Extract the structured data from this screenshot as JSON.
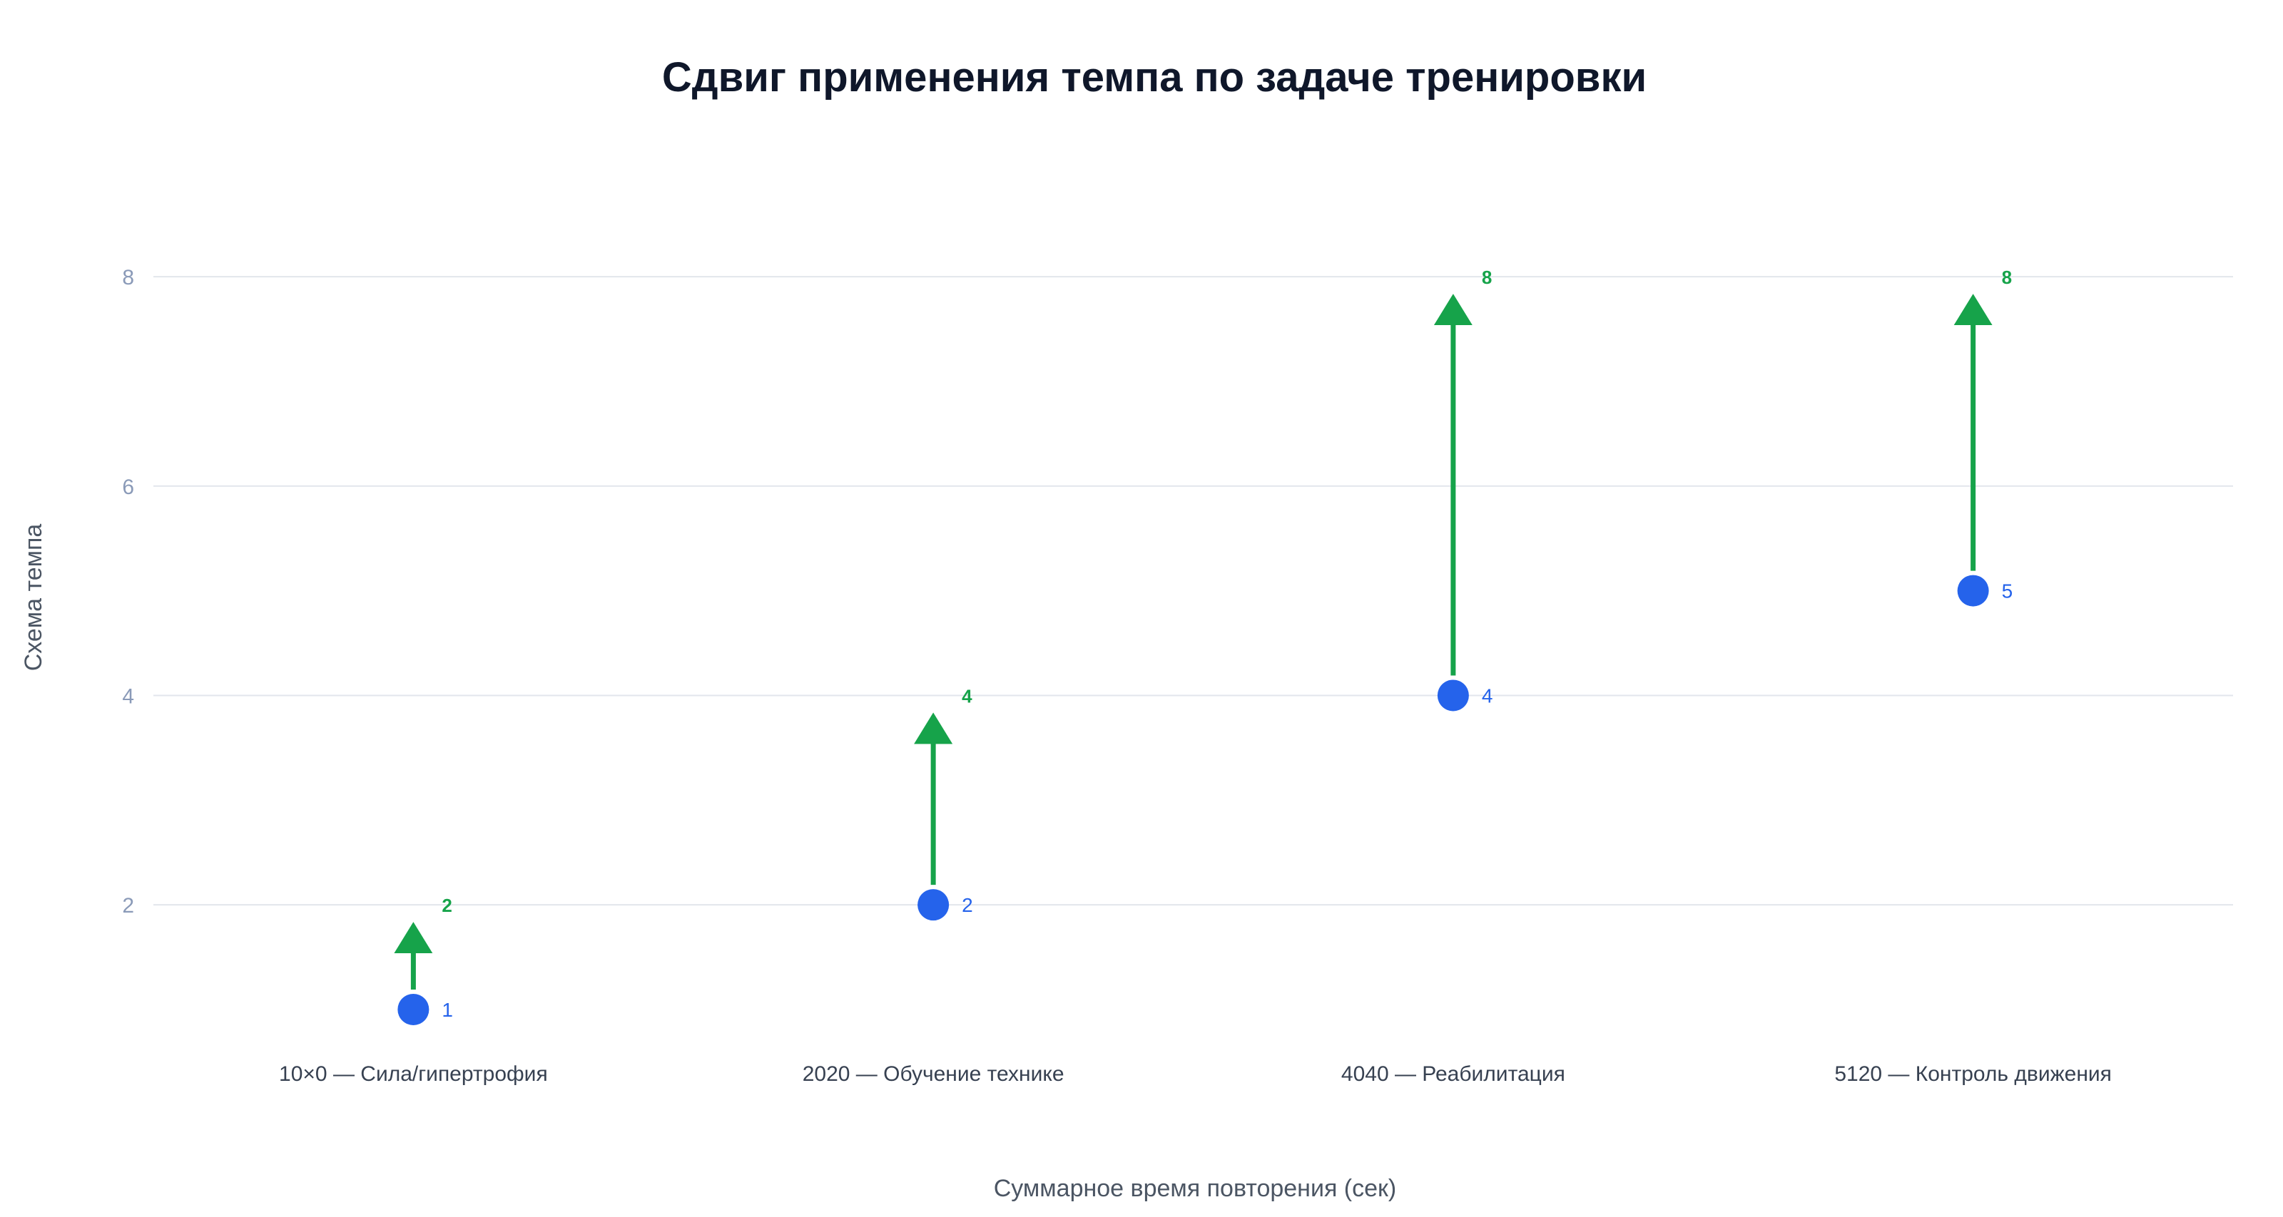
{
  "chart_data": {
    "type": "scatter",
    "title": "Сдвиг применения темпа по задаче тренировки",
    "xlabel": "Суммарное время повторения (сек)",
    "ylabel": "Схема темпа",
    "categories": [
      "10×0 — Сила/гипертрофия",
      "2020 — Обучение технике",
      "4040 — Реабилитация",
      "5120 — Контроль движения"
    ],
    "start_values": [
      1,
      2,
      4,
      5
    ],
    "end_values": [
      2,
      4,
      8,
      8
    ],
    "y_ticks": [
      2,
      4,
      6,
      8
    ],
    "ylim": [
      0.7,
      8.6
    ],
    "grid": true,
    "legend": "none",
    "colors": {
      "start": "#2563eb",
      "arrow": "#16a34a"
    }
  }
}
